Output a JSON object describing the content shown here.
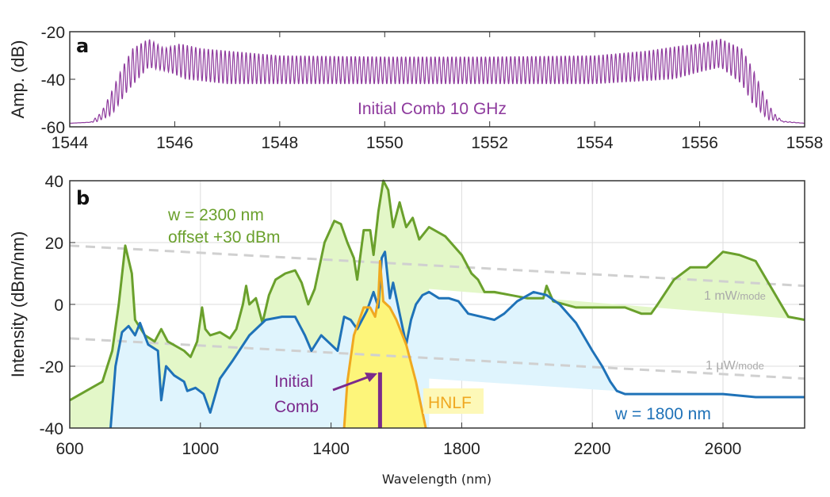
{
  "chart_data": [
    {
      "type": "line",
      "panel_label": "a",
      "title": "",
      "xlabel": "",
      "ylabel": "Amp. (dB)",
      "xlim": [
        1544,
        1558
      ],
      "ylim": [
        -60,
        -20
      ],
      "xticks": [
        1544,
        1546,
        1548,
        1550,
        1552,
        1554,
        1556,
        1558
      ],
      "yticks": [
        -20,
        -40,
        -60
      ],
      "grid": false,
      "annotation": "Initial Comb 10 GHz",
      "series": [
        {
          "name": "Initial Comb 10 GHz",
          "color": "#8e3a9d",
          "line_spacing_nm": 0.08,
          "envelope_upper": [
            [
              1544,
              -58.5
            ],
            [
              1544.4,
              -58
            ],
            [
              1544.6,
              -54
            ],
            [
              1544.8,
              -45
            ],
            [
              1545,
              -35
            ],
            [
              1545.2,
              -27
            ],
            [
              1545.5,
              -23
            ],
            [
              1545.8,
              -27
            ],
            [
              1546.1,
              -25
            ],
            [
              1546.5,
              -27
            ],
            [
              1547,
              -28
            ],
            [
              1548,
              -30
            ],
            [
              1550,
              -30.5
            ],
            [
              1552,
              -30.5
            ],
            [
              1554,
              -30
            ],
            [
              1555,
              -28
            ],
            [
              1555.6,
              -26
            ],
            [
              1556,
              -25
            ],
            [
              1556.4,
              -23
            ],
            [
              1556.8,
              -27
            ],
            [
              1557,
              -35
            ],
            [
              1557.2,
              -45
            ],
            [
              1557.4,
              -54
            ],
            [
              1557.6,
              -58
            ],
            [
              1558,
              -58.5
            ]
          ],
          "envelope_lower": [
            [
              1544,
              -58.5
            ],
            [
              1544.5,
              -58
            ],
            [
              1544.8,
              -55
            ],
            [
              1545.1,
              -45
            ],
            [
              1545.5,
              -35
            ],
            [
              1545.9,
              -37
            ],
            [
              1546.2,
              -40
            ],
            [
              1547,
              -42
            ],
            [
              1550,
              -42
            ],
            [
              1554,
              -42
            ],
            [
              1555.5,
              -40
            ],
            [
              1556,
              -37
            ],
            [
              1556.4,
              -35
            ],
            [
              1556.8,
              -42
            ],
            [
              1557,
              -50
            ],
            [
              1557.3,
              -57
            ],
            [
              1558,
              -58.5
            ]
          ]
        }
      ]
    },
    {
      "type": "line",
      "panel_label": "b",
      "title": "",
      "xlabel": "Wavelength (nm)",
      "ylabel": "Intensity (dBm/nm)",
      "xlim": [
        600,
        2850
      ],
      "ylim": [
        -40,
        40
      ],
      "xticks": [
        600,
        1000,
        1400,
        1800,
        2200,
        2600
      ],
      "yticks": [
        40,
        20,
        0,
        -20,
        -40
      ],
      "grid": true,
      "series": [
        {
          "name": "w = 2300 nm",
          "note": "offset +30 dBm",
          "color": "#6aa02c",
          "fill": "#e3f7c8",
          "fill_lower": [
            [
              1700,
              -40
            ],
            [
              1700,
              5
            ],
            [
              2850,
              -5
            ]
          ],
          "points": [
            [
              600,
              -31
            ],
            [
              650,
              -28
            ],
            [
              700,
              -25
            ],
            [
              730,
              -15
            ],
            [
              750,
              0
            ],
            [
              770,
              19
            ],
            [
              790,
              10
            ],
            [
              800,
              -5
            ],
            [
              830,
              -10
            ],
            [
              860,
              -12
            ],
            [
              880,
              -8
            ],
            [
              900,
              -12
            ],
            [
              950,
              -15
            ],
            [
              970,
              -17
            ],
            [
              990,
              -12
            ],
            [
              1005,
              -1
            ],
            [
              1015,
              -8
            ],
            [
              1030,
              -10
            ],
            [
              1060,
              -9
            ],
            [
              1090,
              -11
            ],
            [
              1110,
              -8
            ],
            [
              1130,
              0
            ],
            [
              1140,
              6
            ],
            [
              1150,
              0
            ],
            [
              1170,
              2
            ],
            [
              1190,
              -6
            ],
            [
              1210,
              3
            ],
            [
              1230,
              8
            ],
            [
              1260,
              10
            ],
            [
              1290,
              11
            ],
            [
              1310,
              7
            ],
            [
              1330,
              0
            ],
            [
              1350,
              5
            ],
            [
              1380,
              20
            ],
            [
              1410,
              27
            ],
            [
              1430,
              26
            ],
            [
              1450,
              20
            ],
            [
              1470,
              15
            ],
            [
              1480,
              8
            ],
            [
              1500,
              24
            ],
            [
              1520,
              24
            ],
            [
              1530,
              16
            ],
            [
              1545,
              30
            ],
            [
              1560,
              40
            ],
            [
              1575,
              37
            ],
            [
              1590,
              25
            ],
            [
              1610,
              33
            ],
            [
              1630,
              25
            ],
            [
              1650,
              28
            ],
            [
              1670,
              21
            ],
            [
              1700,
              25
            ],
            [
              1750,
              22
            ],
            [
              1800,
              16
            ],
            [
              1830,
              10
            ],
            [
              1850,
              8
            ],
            [
              1870,
              4
            ],
            [
              1900,
              4
            ],
            [
              1950,
              3
            ],
            [
              2000,
              2
            ],
            [
              2050,
              2
            ],
            [
              2060,
              6
            ],
            [
              2080,
              1
            ],
            [
              2150,
              -1
            ],
            [
              2250,
              -1
            ],
            [
              2300,
              -1
            ],
            [
              2350,
              -3
            ],
            [
              2380,
              -3
            ],
            [
              2400,
              0
            ],
            [
              2450,
              8
            ],
            [
              2500,
              12
            ],
            [
              2550,
              12
            ],
            [
              2600,
              17
            ],
            [
              2650,
              16
            ],
            [
              2700,
              14
            ],
            [
              2750,
              5
            ],
            [
              2800,
              -4
            ],
            [
              2850,
              -5
            ]
          ]
        },
        {
          "name": "w = 1800 nm",
          "color": "#1f72b8",
          "fill": "#dff4fd",
          "fill_lower": [
            [
              1700,
              -40
            ],
            [
              1700,
              -24
            ],
            [
              2275,
              -28
            ]
          ],
          "points": [
            [
              725,
              -40
            ],
            [
              740,
              -20
            ],
            [
              760,
              -9
            ],
            [
              780,
              -7
            ],
            [
              800,
              -10
            ],
            [
              815,
              -6
            ],
            [
              840,
              -13
            ],
            [
              870,
              -15
            ],
            [
              880,
              -31
            ],
            [
              895,
              -20
            ],
            [
              920,
              -23
            ],
            [
              950,
              -25
            ],
            [
              960,
              -28
            ],
            [
              985,
              -27
            ],
            [
              1010,
              -29
            ],
            [
              1030,
              -35
            ],
            [
              1060,
              -24
            ],
            [
              1100,
              -18
            ],
            [
              1150,
              -10
            ],
            [
              1200,
              -5
            ],
            [
              1250,
              -4
            ],
            [
              1290,
              -4
            ],
            [
              1320,
              -10
            ],
            [
              1340,
              -15
            ],
            [
              1370,
              -10
            ],
            [
              1400,
              -13
            ],
            [
              1420,
              -15
            ],
            [
              1440,
              -4
            ],
            [
              1460,
              -5
            ],
            [
              1480,
              -8
            ],
            [
              1510,
              -2
            ],
            [
              1530,
              4
            ],
            [
              1545,
              -1
            ],
            [
              1555,
              15
            ],
            [
              1565,
              17
            ],
            [
              1580,
              2
            ],
            [
              1590,
              7
            ],
            [
              1610,
              -3
            ],
            [
              1630,
              -13
            ],
            [
              1645,
              -5
            ],
            [
              1660,
              0
            ],
            [
              1680,
              3
            ],
            [
              1700,
              4
            ],
            [
              1730,
              2
            ],
            [
              1760,
              2
            ],
            [
              1790,
              1
            ],
            [
              1820,
              -3
            ],
            [
              1860,
              -4
            ],
            [
              1900,
              -5
            ],
            [
              1930,
              -3
            ],
            [
              1970,
              1
            ],
            [
              2020,
              4
            ],
            [
              2060,
              3
            ],
            [
              2100,
              0
            ],
            [
              2150,
              -6
            ],
            [
              2200,
              -15
            ],
            [
              2230,
              -20
            ],
            [
              2255,
              -25
            ],
            [
              2275,
              -28
            ],
            [
              2300,
              -29
            ],
            [
              2400,
              -29
            ],
            [
              2500,
              -29
            ],
            [
              2600,
              -29
            ],
            [
              2700,
              -30
            ],
            [
              2850,
              -30
            ]
          ]
        },
        {
          "name": "HNLF",
          "color": "#f0a820",
          "fill": "#fdf57a",
          "points": [
            [
              1440,
              -40
            ],
            [
              1450,
              -25
            ],
            [
              1470,
              -10
            ],
            [
              1500,
              -1
            ],
            [
              1520,
              -1
            ],
            [
              1535,
              -4
            ],
            [
              1545,
              2
            ],
            [
              1550,
              14
            ],
            [
              1560,
              1
            ],
            [
              1580,
              -1
            ],
            [
              1600,
              -5
            ],
            [
              1630,
              -13
            ],
            [
              1660,
              -25
            ],
            [
              1690,
              -40
            ]
          ]
        },
        {
          "name": "Initial Comb",
          "color": "#7b2a8c",
          "points": [
            [
              1550,
              -40
            ],
            [
              1550,
              -22
            ]
          ]
        }
      ],
      "reference_lines": [
        {
          "name": "1 mW/mode",
          "label_main": "1 mW",
          "label_unit": "/mode",
          "points": [
            [
              600,
              19
            ],
            [
              2850,
              6
            ]
          ]
        },
        {
          "name": "1 μW/mode",
          "label_main": "1 μW",
          "label_unit": "/mode",
          "points": [
            [
              600,
              -11
            ],
            [
              2850,
              -24
            ]
          ]
        }
      ],
      "annotations": {
        "green_1": "w = 2300 nm",
        "green_2": "offset +30 dBm",
        "blue": "w = 1800 nm",
        "hnlf": "HNLF",
        "comb_1": "Initial",
        "comb_2": "Comb"
      }
    }
  ]
}
